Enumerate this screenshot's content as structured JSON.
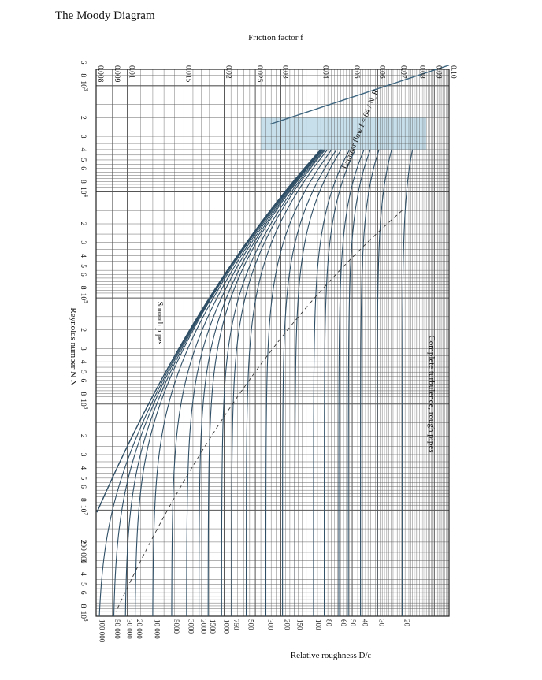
{
  "page": {
    "title": "The Moody Diagram"
  },
  "chart_data": {
    "type": "line",
    "orientation": "rotated-90-clockwise",
    "title": "The Moody Diagram",
    "xlabel": "Reynolds number N_R",
    "ylabel": "Friction factor f",
    "secondary_label": "Relative roughness D/ε",
    "x_scale": "log",
    "y_scale": "log",
    "xlim": [
      700,
      100000000
    ],
    "ylim": [
      0.008,
      0.1
    ],
    "grid": true,
    "x_ticks": [
      {
        "v": 600,
        "label": "6"
      },
      {
        "v": 800,
        "label": "8"
      },
      {
        "v": 1000,
        "label": "10",
        "sup": "3"
      },
      {
        "v": 2000,
        "label": "2"
      },
      {
        "v": 3000,
        "label": "3"
      },
      {
        "v": 4000,
        "label": "4"
      },
      {
        "v": 5000,
        "label": "5"
      },
      {
        "v": 6000,
        "label": "6"
      },
      {
        "v": 8000,
        "label": "8"
      },
      {
        "v": 10000,
        "label": "10",
        "sup": "4"
      },
      {
        "v": 20000,
        "label": "2"
      },
      {
        "v": 30000,
        "label": "3"
      },
      {
        "v": 40000,
        "label": "4"
      },
      {
        "v": 50000,
        "label": "5"
      },
      {
        "v": 60000,
        "label": "6"
      },
      {
        "v": 80000,
        "label": "8"
      },
      {
        "v": 100000,
        "label": "10",
        "sup": "5"
      },
      {
        "v": 200000,
        "label": "2"
      },
      {
        "v": 300000,
        "label": "3"
      },
      {
        "v": 400000,
        "label": "4"
      },
      {
        "v": 500000,
        "label": "5"
      },
      {
        "v": 600000,
        "label": "6"
      },
      {
        "v": 800000,
        "label": "8"
      },
      {
        "v": 1000000,
        "label": "10",
        "sup": "6"
      },
      {
        "v": 2000000,
        "label": "2"
      },
      {
        "v": 3000000,
        "label": "3"
      },
      {
        "v": 4000000,
        "label": "4"
      },
      {
        "v": 5000000,
        "label": "5"
      },
      {
        "v": 6000000,
        "label": "6"
      },
      {
        "v": 8000000,
        "label": "8"
      },
      {
        "v": 10000000,
        "label": "10",
        "sup": "7"
      },
      {
        "v": 20000000,
        "label": "2"
      },
      {
        "v": 30000000,
        "label": "3"
      },
      {
        "v": 40000000,
        "label": "4"
      },
      {
        "v": 50000000,
        "label": "5"
      },
      {
        "v": 60000000,
        "label": "6"
      },
      {
        "v": 80000000,
        "label": "8"
      },
      {
        "v": 100000000,
        "label": "10",
        "sup": "8"
      }
    ],
    "y_ticks": [
      {
        "v": 0.008,
        "label": "0.008"
      },
      {
        "v": 0.009,
        "label": "0.009"
      },
      {
        "v": 0.01,
        "label": "0.01"
      },
      {
        "v": 0.015,
        "label": "0.015"
      },
      {
        "v": 0.02,
        "label": "0.02"
      },
      {
        "v": 0.025,
        "label": "0.025"
      },
      {
        "v": 0.03,
        "label": "0.03"
      },
      {
        "v": 0.04,
        "label": "0.04"
      },
      {
        "v": 0.05,
        "label": "0.05"
      },
      {
        "v": 0.06,
        "label": "0.06"
      },
      {
        "v": 0.07,
        "label": "0.07"
      },
      {
        "v": 0.08,
        "label": "0.08"
      },
      {
        "v": 0.09,
        "label": "0.09"
      },
      {
        "v": 0.1,
        "label": "0.10"
      }
    ],
    "series": [
      {
        "name": "Smooth pipes",
        "roughness_ratio": null
      },
      {
        "name": "20",
        "roughness_ratio": 20
      },
      {
        "name": "30",
        "roughness_ratio": 30
      },
      {
        "name": "40",
        "roughness_ratio": 40
      },
      {
        "name": "50",
        "roughness_ratio": 50
      },
      {
        "name": "60",
        "roughness_ratio": 60
      },
      {
        "name": "80",
        "roughness_ratio": 80
      },
      {
        "name": "100",
        "roughness_ratio": 100
      },
      {
        "name": "150",
        "roughness_ratio": 150
      },
      {
        "name": "200",
        "roughness_ratio": 200
      },
      {
        "name": "300",
        "roughness_ratio": 300
      },
      {
        "name": "500",
        "roughness_ratio": 500
      },
      {
        "name": "750",
        "roughness_ratio": 750
      },
      {
        "name": "1000",
        "roughness_ratio": 1000
      },
      {
        "name": "1500",
        "roughness_ratio": 1500
      },
      {
        "name": "2000",
        "roughness_ratio": 2000
      },
      {
        "name": "3000",
        "roughness_ratio": 3000
      },
      {
        "name": "5000",
        "roughness_ratio": 5000
      },
      {
        "name": "10 000",
        "roughness_ratio": 10000
      },
      {
        "name": "20 000",
        "roughness_ratio": 20000
      },
      {
        "name": "30 000",
        "roughness_ratio": 30000
      },
      {
        "name": "50 000",
        "roughness_ratio": 50000
      },
      {
        "name": "100 000",
        "roughness_ratio": 100000
      }
    ],
    "annotations": {
      "laminar": "Laminar flow f = 64 / N_R",
      "complete_turbulence": "Complete turbulence, rough pipes",
      "smooth_pipes": "Smooth pipes",
      "re_200000": "200 000"
    },
    "transition_zone": {
      "x_range": [
        2000,
        4000
      ],
      "y_range": [
        0.026,
        0.085
      ],
      "color": "#bcd9e8"
    },
    "colors": {
      "curve": "#2f4f66",
      "laminar": "#3e6680",
      "grid": "#555555",
      "dashed": "#333333",
      "band": "#bcd9e8"
    }
  }
}
